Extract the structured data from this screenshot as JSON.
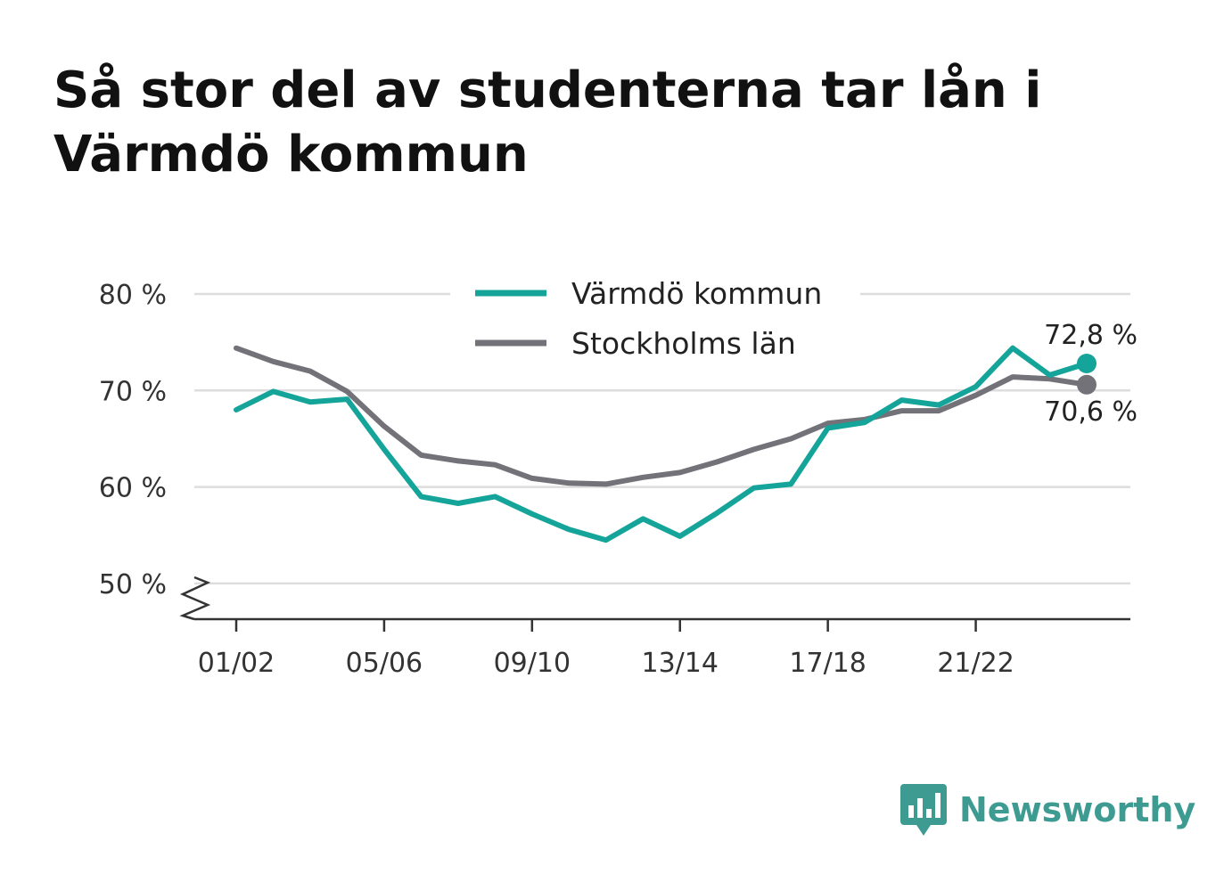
{
  "brand": {
    "name": "Newsworthy",
    "icon": "bar-chart-speech-bubble-icon",
    "color": "#3d9b92"
  },
  "chart_data": {
    "type": "line",
    "title": "Så stor del av studenterna tar lån i Värmdö kommun",
    "xlabel": "",
    "ylabel": "",
    "x": [
      "01/02",
      "02/03",
      "03/04",
      "04/05",
      "05/06",
      "06/07",
      "07/08",
      "08/09",
      "09/10",
      "10/11",
      "11/12",
      "12/13",
      "13/14",
      "14/15",
      "15/16",
      "16/17",
      "17/18",
      "18/19",
      "19/20",
      "20/21",
      "21/22",
      "22/23",
      "23/24",
      "24/25"
    ],
    "x_tick_labels": [
      "01/02",
      "05/06",
      "09/10",
      "13/14",
      "17/18",
      "21/22"
    ],
    "y_ticks": [
      50,
      60,
      70,
      80
    ],
    "y_tick_labels": [
      "50 %",
      "60 %",
      "70 %",
      "80 %"
    ],
    "ylim": [
      46.3,
      80
    ],
    "grid": true,
    "legend_position": "top-center",
    "series": [
      {
        "name": "Värmdö kommun",
        "color": "#14a499",
        "values": [
          68.0,
          69.9,
          68.8,
          69.1,
          63.9,
          59.0,
          58.3,
          59.0,
          57.2,
          55.6,
          54.5,
          56.7,
          54.9,
          57.3,
          59.9,
          60.3,
          66.1,
          66.7,
          69.0,
          68.5,
          70.4,
          74.4,
          71.6,
          72.8
        ],
        "end_label": "72,8 %"
      },
      {
        "name": "Stockholms län",
        "color": "#737279",
        "values": [
          74.4,
          73.0,
          72.0,
          69.9,
          66.3,
          63.3,
          62.7,
          62.3,
          60.9,
          60.4,
          60.3,
          61.0,
          61.5,
          62.6,
          63.9,
          65.0,
          66.6,
          67.0,
          67.9,
          67.9,
          69.5,
          71.4,
          71.2,
          70.6
        ],
        "end_label": "70,6 %"
      }
    ]
  }
}
